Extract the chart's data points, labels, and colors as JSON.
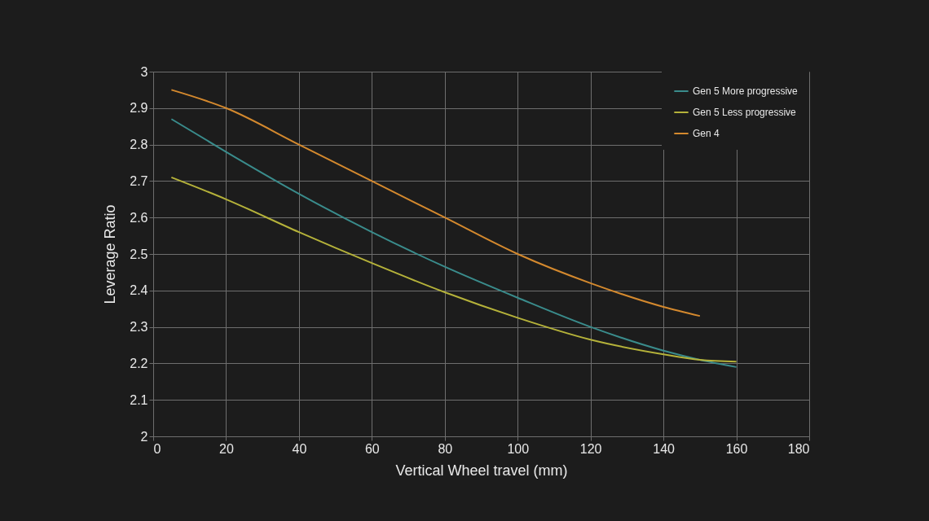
{
  "chart_data": {
    "type": "line",
    "xlabel": "Vertical Wheel travel (mm)",
    "ylabel": "Leverage Ratio",
    "xlim": [
      0,
      180
    ],
    "xticks": [
      0,
      20,
      40,
      60,
      80,
      100,
      120,
      140,
      160,
      180
    ],
    "ylim": [
      2,
      3
    ],
    "yticks": [
      2,
      2.1,
      2.2,
      2.3,
      2.4,
      2.5,
      2.6,
      2.7,
      2.8,
      2.9,
      3
    ],
    "grid": true,
    "legend": "top right",
    "series": [
      {
        "name": "Gen 5 More progressive",
        "color": "#3a8c8c",
        "x": [
          5,
          20,
          40,
          60,
          80,
          100,
          120,
          140,
          150,
          160
        ],
        "values": [
          2.87,
          2.78,
          2.665,
          2.56,
          2.465,
          2.38,
          2.3,
          2.235,
          2.21,
          2.19
        ]
      },
      {
        "name": "Gen 5 Less progressive",
        "color": "#b5b23a",
        "x": [
          5,
          20,
          40,
          60,
          80,
          100,
          120,
          140,
          150,
          160
        ],
        "values": [
          2.71,
          2.65,
          2.56,
          2.475,
          2.395,
          2.325,
          2.265,
          2.225,
          2.21,
          2.205
        ]
      },
      {
        "name": "Gen 4",
        "color": "#d4892e",
        "x": [
          5,
          20,
          40,
          60,
          80,
          100,
          120,
          140,
          150
        ],
        "values": [
          2.95,
          2.9,
          2.8,
          2.7,
          2.6,
          2.5,
          2.42,
          2.355,
          2.33
        ]
      }
    ]
  }
}
